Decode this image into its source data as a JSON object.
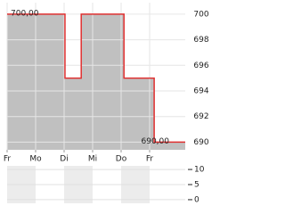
{
  "chart_data": [
    {
      "type": "line",
      "x": [
        0,
        2.03,
        2.03,
        2.6,
        2.6,
        4.1,
        4.1,
        5.16,
        5.16,
        6.25
      ],
      "series": [
        {
          "color": "#e03030",
          "values": [
            700,
            700,
            695,
            695,
            700,
            700,
            695,
            695,
            690,
            690
          ],
          "value_labels": [
            "700,00",
            null,
            null,
            null,
            null,
            null,
            null,
            null,
            null,
            "690,00"
          ]
        }
      ],
      "xlim": [
        0,
        6.25
      ],
      "xticks": [
        {
          "value": 0,
          "label": "Fr"
        },
        {
          "value": 1,
          "label": "Mo"
        },
        {
          "value": 2,
          "label": "Di"
        },
        {
          "value": 3,
          "label": "Mi"
        },
        {
          "value": 4,
          "label": "Do"
        },
        {
          "value": 5,
          "label": "Fr"
        }
      ],
      "ylim": [
        689.4,
        700.9
      ],
      "yticks": [
        690,
        692,
        694,
        696,
        698,
        700
      ],
      "area_color": "#c0c0c0",
      "grid": true
    },
    {
      "type": "bar",
      "xlim": [
        0,
        6.25
      ],
      "ylim": [
        -1.2,
        11.2
      ],
      "yticks": [
        0,
        5,
        10
      ],
      "grid": true
    }
  ]
}
